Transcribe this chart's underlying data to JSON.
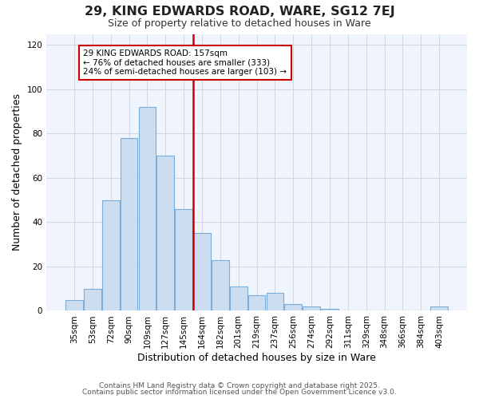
{
  "title": "29, KING EDWARDS ROAD, WARE, SG12 7EJ",
  "subtitle": "Size of property relative to detached houses in Ware",
  "xlabel": "Distribution of detached houses by size in Ware",
  "ylabel": "Number of detached properties",
  "bar_color": "#ccddf0",
  "bar_edge_color": "#7aacda",
  "highlight_color": "#cc0000",
  "background_color": "#ffffff",
  "plot_bg_color": "#f0f4fc",
  "grid_color": "#d0d8e8",
  "categories": [
    "35sqm",
    "53sqm",
    "72sqm",
    "90sqm",
    "109sqm",
    "127sqm",
    "145sqm",
    "164sqm",
    "182sqm",
    "201sqm",
    "219sqm",
    "237sqm",
    "256sqm",
    "274sqm",
    "292sqm",
    "311sqm",
    "329sqm",
    "348sqm",
    "366sqm",
    "384sqm",
    "403sqm"
  ],
  "values": [
    5,
    10,
    50,
    78,
    92,
    70,
    46,
    35,
    23,
    11,
    7,
    8,
    3,
    2,
    1,
    0,
    0,
    0,
    0,
    0,
    2
  ],
  "highlight_index": 7,
  "annotation_line1": "29 KING EDWARDS ROAD: 157sqm",
  "annotation_line2": "← 76% of detached houses are smaller (333)",
  "annotation_line3": "24% of semi-detached houses are larger (103) →",
  "annotation_box_color": "#ffffff",
  "annotation_edge_color": "#cc0000",
  "ylim": [
    0,
    125
  ],
  "yticks": [
    0,
    20,
    40,
    60,
    80,
    100,
    120
  ],
  "footnote1": "Contains HM Land Registry data © Crown copyright and database right 2025.",
  "footnote2": "Contains public sector information licensed under the Open Government Licence v3.0."
}
